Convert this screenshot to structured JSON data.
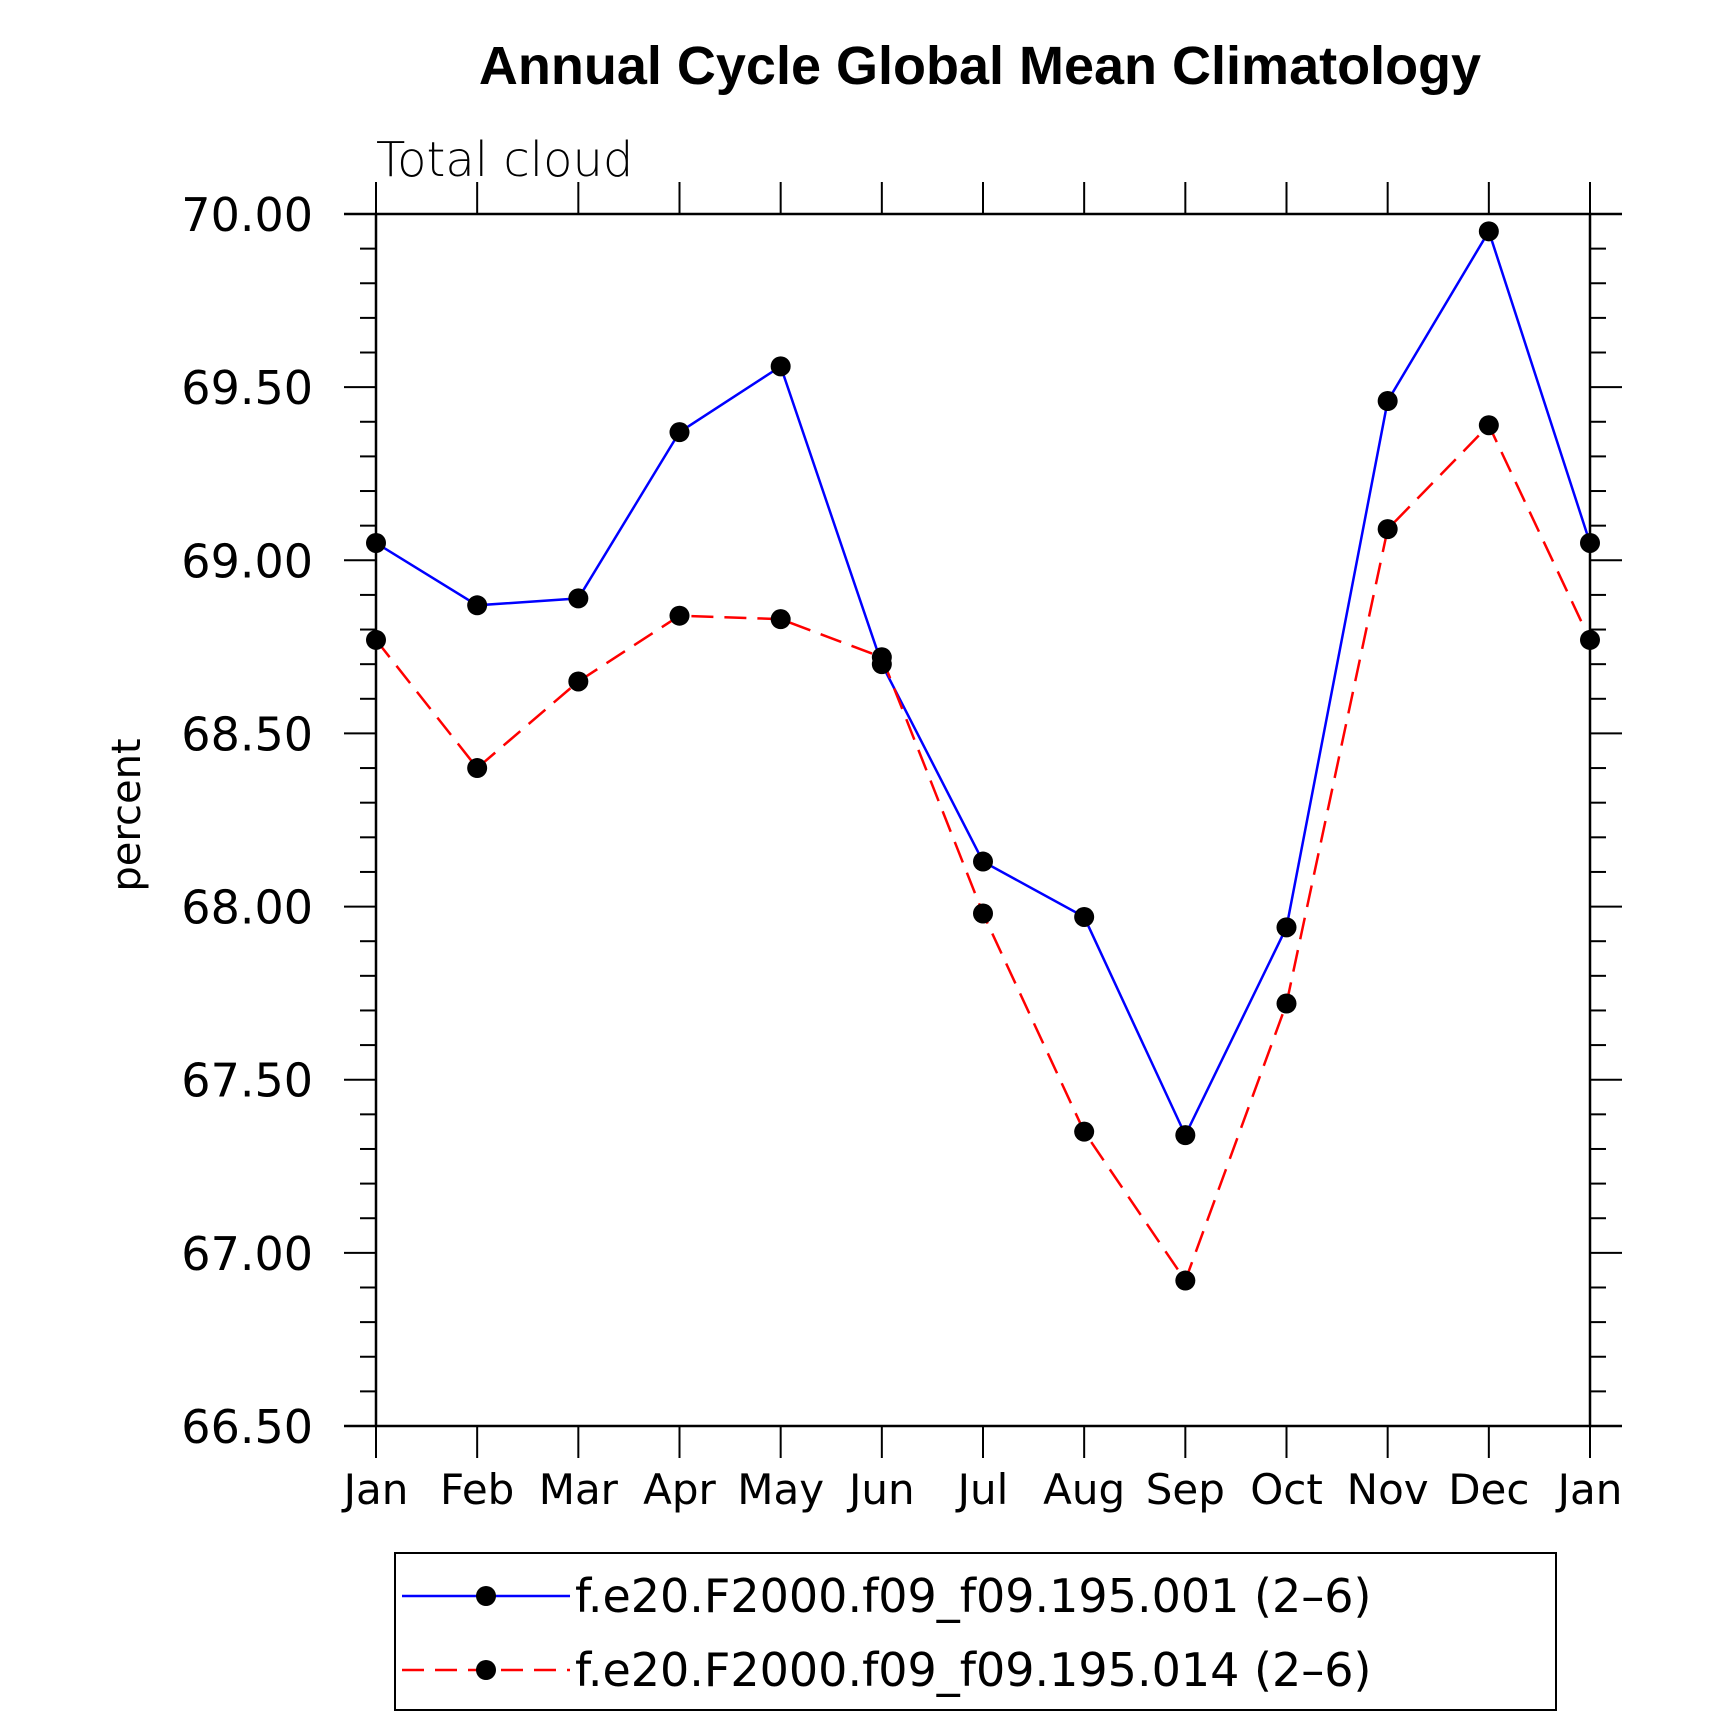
{
  "chart_data": {
    "type": "line",
    "title": "Annual Cycle Global Mean Climatology",
    "subtitle": "Total cloud",
    "ylabel": "percent",
    "xlabel": "",
    "categories": [
      "Jan",
      "Feb",
      "Mar",
      "Apr",
      "May",
      "Jun",
      "Jul",
      "Aug",
      "Sep",
      "Oct",
      "Nov",
      "Dec",
      "Jan"
    ],
    "ylim": [
      66.5,
      70.0
    ],
    "yticks": [
      "66.50",
      "67.00",
      "67.50",
      "68.00",
      "68.50",
      "69.00",
      "69.50",
      "70.00"
    ],
    "ytick_values": [
      66.5,
      67.0,
      67.5,
      68.0,
      68.5,
      69.0,
      69.5,
      70.0
    ],
    "grid": false,
    "legend_position": "bottom",
    "series": [
      {
        "name": "f.e20.F2000.f09_f09.195.001 (2–6)",
        "color": "#0000ff",
        "line_style": "solid",
        "values": [
          69.05,
          68.87,
          68.89,
          69.37,
          69.56,
          68.7,
          68.13,
          67.97,
          67.34,
          67.94,
          69.46,
          69.95,
          69.05
        ]
      },
      {
        "name": "f.e20.F2000.f09_f09.195.014 (2–6)",
        "color": "#ff0000",
        "line_style": "dashed",
        "values": [
          68.77,
          68.4,
          68.65,
          68.84,
          68.83,
          68.72,
          67.98,
          67.35,
          66.92,
          67.72,
          69.09,
          69.39,
          68.77
        ]
      }
    ]
  }
}
